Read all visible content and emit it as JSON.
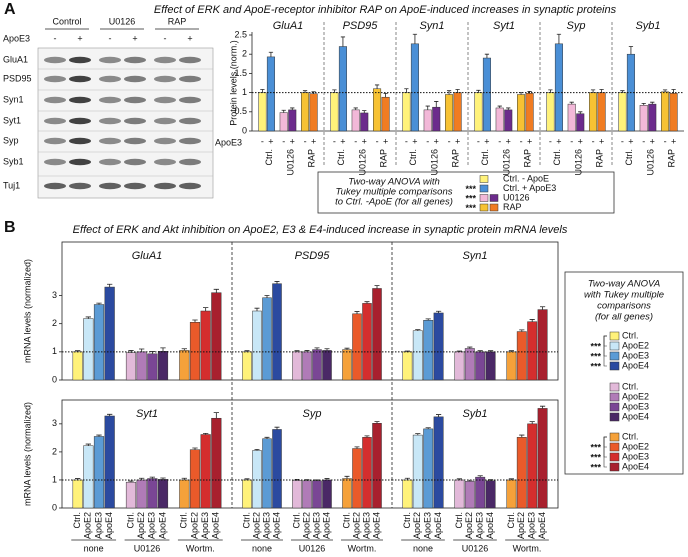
{
  "panel_a": {
    "label": "A",
    "title": "Effect of ERK and ApoE-receptor inhibitor RAP on ApoE-induced increases in synaptic proteins",
    "blot": {
      "groups": [
        "Control",
        "U0126",
        "RAP"
      ],
      "treatment": "ApoE3",
      "signs": [
        "-",
        "+",
        "-",
        "+",
        "-",
        "+"
      ],
      "proteins": [
        "GluA1",
        "PSD95",
        "Syn1",
        "Syt1",
        "Syp",
        "Syb1",
        "Tuj1"
      ]
    },
    "ylabel": "Protein levels (norm.)",
    "treatment": "ApoE3",
    "stats": {
      "text": [
        "Two-way ANOVA with",
        "Tukey multiple comparisons",
        "to Ctrl. -ApoE (for all genes)"
      ],
      "legend": [
        {
          "name": "Ctrl. - ApoE",
          "colors": [
            "#fff27a"
          ]
        },
        {
          "name": "Ctrl. + ApoE3",
          "colors": [
            "#4a8fd6"
          ],
          "stars": "***"
        },
        {
          "name": "U0126",
          "colors": [
            "#f2b8d8",
            "#6c2b8c"
          ],
          "stars": "***"
        },
        {
          "name": "RAP",
          "colors": [
            "#f7c233",
            "#f07c22"
          ],
          "stars": "***"
        }
      ]
    }
  },
  "panel_b": {
    "label": "B",
    "title": "Effect of ERK and Akt inhibition on ApoE2, E3 & E4-induced increase in synaptic protein mRNA levels",
    "ylabel": "mRNA levels (normalized)",
    "stats": {
      "text": [
        "Two-way ANOVA",
        "with Tukey multiple",
        "comparisons",
        "(for all genes)"
      ],
      "groups": [
        {
          "entries": [
            {
              "name": "Ctrl.",
              "color": "#fff27a"
            },
            {
              "name": "ApoE2",
              "color": "#c8e7f7"
            },
            {
              "name": "ApoE3",
              "color": "#5b9bd5"
            },
            {
              "name": "ApoE4",
              "color": "#2b4aa0"
            }
          ],
          "stars": [
            "***",
            "***",
            "***"
          ]
        },
        {
          "entries": [
            {
              "name": "Ctrl.",
              "color": "#e2b9d9"
            },
            {
              "name": "ApoE2",
              "color": "#b07bb7"
            },
            {
              "name": "ApoE3",
              "color": "#7a4695"
            },
            {
              "name": "ApoE4",
              "color": "#4a2866"
            }
          ]
        },
        {
          "entries": [
            {
              "name": "Ctrl.",
              "color": "#f5a13a"
            },
            {
              "name": "ApoE2",
              "color": "#ea5a2a"
            },
            {
              "name": "ApoE3",
              "color": "#d42e2e"
            },
            {
              "name": "ApoE4",
              "color": "#a8202e"
            }
          ],
          "stars": [
            "***",
            "***",
            "***"
          ]
        }
      ]
    }
  },
  "chart_data": [
    {
      "type": "bar",
      "title": "GluA1",
      "categories": [
        "-",
        "+",
        "-",
        "+",
        "-",
        "+"
      ],
      "groups": [
        "Ctrl.",
        "U0126",
        "RAP"
      ],
      "values": [
        1.0,
        1.93,
        0.48,
        0.55,
        1.0,
        0.97
      ],
      "errors": [
        0.08,
        0.12,
        0.06,
        0.05,
        0.05,
        0.05
      ],
      "colors": [
        "#fff27a",
        "#4a8fd6",
        "#f2b8d8",
        "#6c2b8c",
        "#f7c233",
        "#f07c22"
      ],
      "ylim": [
        0,
        2.5
      ],
      "yticks": [
        0,
        0.5,
        1,
        1.5,
        2,
        2.5
      ],
      "hline": 1
    },
    {
      "type": "bar",
      "title": "PSD95",
      "categories": [
        "-",
        "+",
        "-",
        "+",
        "-",
        "+"
      ],
      "groups": [
        "Ctrl.",
        "U0126",
        "RAP"
      ],
      "values": [
        1.0,
        2.2,
        0.55,
        0.47,
        1.1,
        0.88
      ],
      "errors": [
        0.07,
        0.25,
        0.05,
        0.06,
        0.1,
        0.1
      ],
      "colors": [
        "#fff27a",
        "#4a8fd6",
        "#f2b8d8",
        "#6c2b8c",
        "#f7c233",
        "#f07c22"
      ],
      "ylim": [
        0,
        2.5
      ],
      "hline": 1
    },
    {
      "type": "bar",
      "title": "Syn1",
      "categories": [
        "-",
        "+",
        "-",
        "+",
        "-",
        "+"
      ],
      "groups": [
        "Ctrl.",
        "U0126",
        "RAP"
      ],
      "values": [
        1.0,
        2.27,
        0.55,
        0.62,
        0.95,
        1.0
      ],
      "errors": [
        0.1,
        0.25,
        0.1,
        0.15,
        0.1,
        0.08
      ],
      "colors": [
        "#fff27a",
        "#4a8fd6",
        "#f2b8d8",
        "#6c2b8c",
        "#f7c233",
        "#f07c22"
      ],
      "ylim": [
        0,
        2.5
      ],
      "hline": 1
    },
    {
      "type": "bar",
      "title": "Syt1",
      "categories": [
        "-",
        "+",
        "-",
        "+",
        "-",
        "+"
      ],
      "groups": [
        "Ctrl.",
        "U0126",
        "RAP"
      ],
      "values": [
        1.0,
        1.9,
        0.6,
        0.55,
        0.95,
        0.98
      ],
      "errors": [
        0.06,
        0.1,
        0.05,
        0.05,
        0.05,
        0.05
      ],
      "colors": [
        "#fff27a",
        "#4a8fd6",
        "#f2b8d8",
        "#6c2b8c",
        "#f7c233",
        "#f07c22"
      ],
      "ylim": [
        0,
        2.5
      ],
      "hline": 1
    },
    {
      "type": "bar",
      "title": "Syp",
      "categories": [
        "-",
        "+",
        "-",
        "+",
        "-",
        "+"
      ],
      "groups": [
        "Ctrl.",
        "U0126",
        "RAP"
      ],
      "values": [
        1.0,
        2.27,
        0.7,
        0.45,
        1.0,
        1.0
      ],
      "errors": [
        0.07,
        0.25,
        0.05,
        0.05,
        0.07,
        0.08
      ],
      "colors": [
        "#fff27a",
        "#4a8fd6",
        "#f2b8d8",
        "#6c2b8c",
        "#f7c233",
        "#f07c22"
      ],
      "ylim": [
        0,
        2.5
      ],
      "hline": 1
    },
    {
      "type": "bar",
      "title": "Syb1",
      "categories": [
        "-",
        "+",
        "-",
        "+",
        "-",
        "+"
      ],
      "groups": [
        "Ctrl.",
        "U0126",
        "RAP"
      ],
      "values": [
        1.0,
        2.0,
        0.67,
        0.7,
        1.02,
        0.98
      ],
      "errors": [
        0.05,
        0.2,
        0.05,
        0.05,
        0.05,
        0.1
      ],
      "colors": [
        "#fff27a",
        "#4a8fd6",
        "#f2b8d8",
        "#6c2b8c",
        "#f7c233",
        "#f07c22"
      ],
      "ylim": [
        0,
        2.5
      ],
      "hline": 1
    },
    {
      "type": "bar",
      "title": "GluA1",
      "values": [
        1.0,
        2.18,
        2.68,
        3.3,
        0.97,
        1.0,
        0.93,
        1.02,
        1.05,
        2.05,
        2.45,
        3.1
      ],
      "errors": [
        0.04,
        0.06,
        0.05,
        0.1,
        0.08,
        0.1,
        0.08,
        0.12,
        0.06,
        0.08,
        0.12,
        0.12
      ],
      "colors": [
        "#fff27a",
        "#c8e7f7",
        "#5b9bd5",
        "#2b4aa0",
        "#e2b9d9",
        "#b07bb7",
        "#7a4695",
        "#4a2866",
        "#f5a13a",
        "#ea5a2a",
        "#d42e2e",
        "#a8202e"
      ],
      "ylim": [
        0,
        4.9
      ],
      "yticks": [
        0,
        1,
        2,
        3
      ],
      "hline": 1
    },
    {
      "type": "bar",
      "title": "PSD95",
      "values": [
        1.0,
        2.45,
        2.92,
        3.42,
        1.0,
        1.0,
        1.08,
        1.05,
        1.08,
        2.35,
        2.72,
        3.25
      ],
      "errors": [
        0.04,
        0.1,
        0.08,
        0.08,
        0.04,
        0.05,
        0.06,
        0.06,
        0.05,
        0.08,
        0.06,
        0.1
      ],
      "colors": [
        "#fff27a",
        "#c8e7f7",
        "#5b9bd5",
        "#2b4aa0",
        "#e2b9d9",
        "#b07bb7",
        "#7a4695",
        "#4a2866",
        "#f5a13a",
        "#ea5a2a",
        "#d42e2e",
        "#a8202e"
      ],
      "ylim": [
        0,
        4.9
      ],
      "hline": 1
    },
    {
      "type": "bar",
      "title": "Syn1",
      "values": [
        1.0,
        1.75,
        2.12,
        2.38,
        1.0,
        1.12,
        1.0,
        1.0,
        1.0,
        1.72,
        2.07,
        2.5
      ],
      "errors": [
        0.03,
        0.04,
        0.05,
        0.06,
        0.03,
        0.05,
        0.04,
        0.04,
        0.04,
        0.06,
        0.08,
        0.1
      ],
      "colors": [
        "#fff27a",
        "#c8e7f7",
        "#5b9bd5",
        "#2b4aa0",
        "#e2b9d9",
        "#b07bb7",
        "#7a4695",
        "#4a2866",
        "#f5a13a",
        "#ea5a2a",
        "#d42e2e",
        "#a8202e"
      ],
      "ylim": [
        0,
        4.9
      ],
      "hline": 1
    },
    {
      "type": "bar",
      "title": "Syt1",
      "categories": [
        "Ctrl.",
        "ApoE2",
        "ApoE3",
        "ApoE4",
        "Ctrl.",
        "ApoE2",
        "ApoE3",
        "ApoE4",
        "Ctrl.",
        "ApoE2",
        "ApoE3",
        "ApoE4"
      ],
      "groups": [
        "none",
        "U0126",
        "Wortm."
      ],
      "values": [
        1.0,
        2.22,
        2.55,
        3.28,
        0.92,
        1.0,
        1.05,
        1.02,
        1.0,
        2.08,
        2.62,
        3.2
      ],
      "errors": [
        0.05,
        0.06,
        0.05,
        0.06,
        0.04,
        0.06,
        0.05,
        0.05,
        0.06,
        0.06,
        0.04,
        0.2
      ],
      "colors": [
        "#fff27a",
        "#c8e7f7",
        "#5b9bd5",
        "#2b4aa0",
        "#e2b9d9",
        "#b07bb7",
        "#7a4695",
        "#4a2866",
        "#f5a13a",
        "#ea5a2a",
        "#d42e2e",
        "#a8202e"
      ],
      "ylim": [
        0,
        3.85
      ],
      "yticks": [
        0,
        1,
        2,
        3
      ],
      "hline": 1
    },
    {
      "type": "bar",
      "title": "Syp",
      "categories": [
        "Ctrl.",
        "ApoE2",
        "ApoE3",
        "ApoE4",
        "Ctrl.",
        "ApoE2",
        "ApoE3",
        "ApoE4",
        "Ctrl.",
        "ApoE2",
        "ApoE3",
        "ApoE4"
      ],
      "groups": [
        "none",
        "U0126",
        "Wortm."
      ],
      "values": [
        1.0,
        2.05,
        2.47,
        2.8,
        0.98,
        0.97,
        0.97,
        1.0,
        1.05,
        2.12,
        2.52,
        3.02
      ],
      "errors": [
        0.04,
        0.04,
        0.05,
        0.08,
        0.04,
        0.04,
        0.03,
        0.05,
        0.08,
        0.06,
        0.05,
        0.06
      ],
      "colors": [
        "#fff27a",
        "#c8e7f7",
        "#5b9bd5",
        "#2b4aa0",
        "#e2b9d9",
        "#b07bb7",
        "#7a4695",
        "#4a2866",
        "#f5a13a",
        "#ea5a2a",
        "#d42e2e",
        "#a8202e"
      ],
      "ylim": [
        0,
        3.85
      ],
      "hline": 1
    },
    {
      "type": "bar",
      "title": "Syb1",
      "categories": [
        "Ctrl.",
        "ApoE2",
        "ApoE3",
        "ApoE4",
        "Ctrl.",
        "ApoE2",
        "ApoE3",
        "ApoE4",
        "Ctrl.",
        "ApoE2",
        "ApoE3",
        "ApoE4"
      ],
      "groups": [
        "none",
        "U0126",
        "Wortm."
      ],
      "values": [
        1.0,
        2.6,
        2.82,
        3.25,
        1.0,
        0.95,
        1.1,
        0.97,
        1.0,
        2.52,
        3.0,
        3.55
      ],
      "errors": [
        0.06,
        0.05,
        0.04,
        0.08,
        0.04,
        0.04,
        0.05,
        0.04,
        0.04,
        0.08,
        0.08,
        0.08
      ],
      "colors": [
        "#fff27a",
        "#c8e7f7",
        "#5b9bd5",
        "#2b4aa0",
        "#e2b9d9",
        "#b07bb7",
        "#7a4695",
        "#4a2866",
        "#f5a13a",
        "#ea5a2a",
        "#d42e2e",
        "#a8202e"
      ],
      "ylim": [
        0,
        3.85
      ],
      "hline": 1
    }
  ]
}
